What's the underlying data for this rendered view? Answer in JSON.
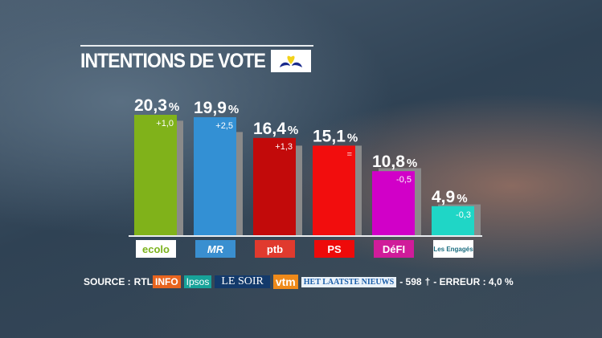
{
  "title": "INTENTIONS DE VOTE",
  "chart_data": {
    "type": "bar",
    "categories": [
      "ecolo",
      "MR",
      "ptb",
      "PS",
      "DéFI",
      "Les Engagés"
    ],
    "values": [
      20.3,
      19.9,
      16.4,
      15.1,
      10.8,
      4.9
    ],
    "value_labels": [
      "20,3",
      "19,9",
      "16,4",
      "15,1",
      "10,8",
      "4,9"
    ],
    "unit": "%",
    "changes": [
      "+1,0",
      "+2,5",
      "+1,3",
      "=",
      "-0,5",
      "-0,3"
    ],
    "previous_values": [
      19.3,
      17.4,
      15.1,
      15.1,
      11.3,
      5.2
    ],
    "colors": [
      "#80b21a",
      "#3390d4",
      "#c20a0a",
      "#f20d0d",
      "#d100c8",
      "#1fd6c6"
    ],
    "previous_color": "#8a8a8a",
    "ylim": [
      0,
      20.3
    ],
    "grid": false,
    "legend": "none"
  },
  "source": {
    "label": "SOURCE :",
    "logos": [
      "RTL",
      "INFO",
      "Ipsos",
      "LE SOIR",
      "vtm",
      "HET LAATSTE NIEUWS"
    ],
    "sample": "- 598",
    "error": "- ERREUR : 4,0 %"
  }
}
